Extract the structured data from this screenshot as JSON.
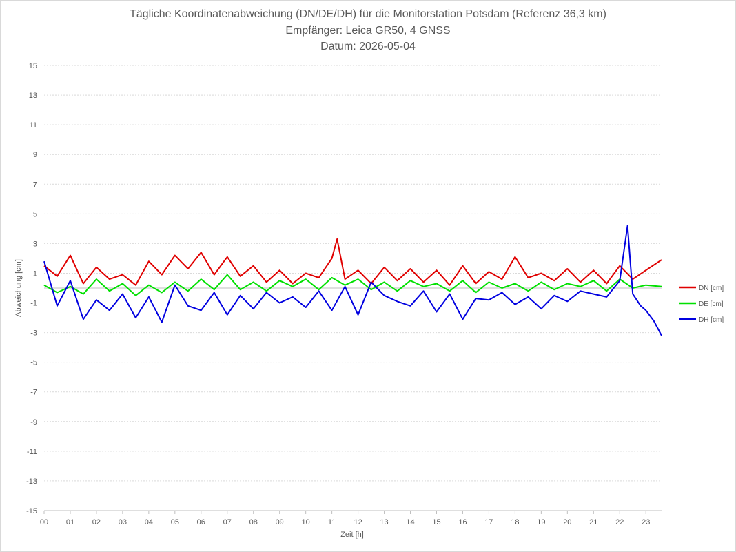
{
  "chart_data": {
    "type": "line",
    "title": "Tägliche Koordinatenabweichung (DN/DE/DH) für die Monitorstation Potsdam (Referenz 36,3 km)",
    "subtitle": "Empfänger: Leica GR50, 4 GNSS",
    "subtitle2": "Datum: 2026-05-04",
    "xlabel": "Zeit [h]",
    "ylabel": "Abweichung [cm]",
    "xlim": [
      0,
      23.6
    ],
    "ylim": [
      -15,
      15
    ],
    "x_ticks": [
      "00",
      "01",
      "02",
      "03",
      "04",
      "05",
      "06",
      "07",
      "08",
      "09",
      "10",
      "11",
      "12",
      "13",
      "14",
      "15",
      "16",
      "17",
      "18",
      "19",
      "20",
      "21",
      "22",
      "23"
    ],
    "y_ticks": [
      15,
      13,
      11,
      9,
      7,
      5,
      3,
      1,
      -1,
      -3,
      -5,
      -7,
      -9,
      -11,
      -13,
      -15
    ],
    "grid": true,
    "legend_position": "right",
    "series": [
      {
        "name": "DN [cm]",
        "color": "#e00000",
        "x": [
          0,
          0.5,
          1,
          1.5,
          2,
          2.5,
          3,
          3.5,
          4,
          4.5,
          5,
          5.5,
          6,
          6.5,
          7,
          7.5,
          8,
          8.5,
          9,
          9.5,
          10,
          10.5,
          11,
          11.2,
          11.5,
          12,
          12.5,
          13,
          13.5,
          14,
          14.5,
          15,
          15.5,
          16,
          16.5,
          17,
          17.5,
          18,
          18.5,
          19,
          19.5,
          20,
          20.5,
          21,
          21.5,
          22,
          22.5,
          23,
          23.6
        ],
        "values": [
          1.5,
          0.8,
          2.2,
          0.3,
          1.4,
          0.6,
          0.9,
          0.2,
          1.8,
          0.9,
          2.2,
          1.3,
          2.4,
          0.9,
          2.1,
          0.8,
          1.5,
          0.4,
          1.2,
          0.3,
          1.0,
          0.7,
          2.0,
          3.3,
          0.6,
          1.2,
          0.3,
          1.4,
          0.5,
          1.3,
          0.4,
          1.2,
          0.2,
          1.5,
          0.3,
          1.1,
          0.6,
          2.1,
          0.7,
          1.0,
          0.5,
          1.3,
          0.4,
          1.2,
          0.3,
          1.5,
          0.6,
          1.2,
          1.9
        ]
      },
      {
        "name": "DE [cm]",
        "color": "#00e000",
        "x": [
          0,
          0.5,
          1,
          1.5,
          2,
          2.5,
          3,
          3.5,
          4,
          4.5,
          5,
          5.5,
          6,
          6.5,
          7,
          7.5,
          8,
          8.5,
          9,
          9.5,
          10,
          10.5,
          11,
          11.5,
          12,
          12.5,
          13,
          13.5,
          14,
          14.5,
          15,
          15.5,
          16,
          16.5,
          17,
          17.5,
          18,
          18.5,
          19,
          19.5,
          20,
          20.5,
          21,
          21.5,
          22,
          22.5,
          23,
          23.6
        ],
        "values": [
          0.2,
          -0.3,
          0.1,
          -0.4,
          0.6,
          -0.2,
          0.3,
          -0.5,
          0.2,
          -0.3,
          0.4,
          -0.2,
          0.6,
          -0.1,
          0.9,
          -0.1,
          0.4,
          -0.2,
          0.5,
          0.1,
          0.6,
          -0.1,
          0.7,
          0.2,
          0.6,
          -0.1,
          0.4,
          -0.2,
          0.5,
          0.1,
          0.3,
          -0.2,
          0.5,
          -0.3,
          0.4,
          0.0,
          0.3,
          -0.2,
          0.4,
          -0.1,
          0.3,
          0.1,
          0.5,
          -0.2,
          0.6,
          0.0,
          0.2,
          0.1
        ]
      },
      {
        "name": "DH [cm]",
        "color": "#0000e0",
        "x": [
          0,
          0.5,
          1,
          1.5,
          2,
          2.5,
          3,
          3.5,
          4,
          4.5,
          5,
          5.5,
          6,
          6.5,
          7,
          7.5,
          8,
          8.5,
          9,
          9.5,
          10,
          10.5,
          11,
          11.5,
          12,
          12.5,
          13,
          13.5,
          14,
          14.5,
          15,
          15.5,
          16,
          16.5,
          17,
          17.5,
          18,
          18.5,
          19,
          19.5,
          20,
          20.5,
          21,
          21.5,
          22,
          22.3,
          22.5,
          22.8,
          23,
          23.3,
          23.6
        ],
        "values": [
          1.8,
          -1.2,
          0.5,
          -2.1,
          -0.8,
          -1.5,
          -0.4,
          -2.0,
          -0.6,
          -2.3,
          0.2,
          -1.2,
          -1.5,
          -0.3,
          -1.8,
          -0.5,
          -1.4,
          -0.3,
          -1.0,
          -0.6,
          -1.3,
          -0.2,
          -1.5,
          0.1,
          -1.8,
          0.4,
          -0.5,
          -0.9,
          -1.2,
          -0.2,
          -1.6,
          -0.4,
          -2.1,
          -0.7,
          -0.8,
          -0.3,
          -1.1,
          -0.6,
          -1.4,
          -0.5,
          -0.9,
          -0.2,
          -0.4,
          -0.6,
          0.5,
          4.2,
          -0.4,
          -1.2,
          -1.5,
          -2.2,
          -3.2
        ]
      }
    ]
  }
}
